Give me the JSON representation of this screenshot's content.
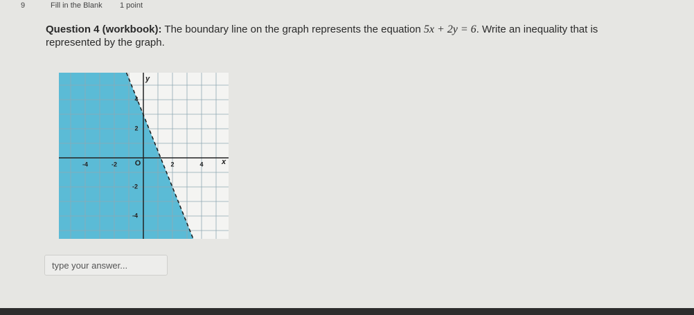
{
  "header": {
    "number": "9",
    "type": "Fill in the Blank",
    "points": "1 point"
  },
  "question": {
    "label": "Question 4 (workbook):",
    "text_before": "The boundary line on the graph represents the equation",
    "equation": "5x + 2y = 6",
    "text_after": ". Write an inequality that is represented by the graph."
  },
  "graph": {
    "x_axis_label": "x",
    "y_axis_label": "y",
    "origin_label": "O",
    "x_tick_labels": [
      "-4",
      "-2",
      "2",
      "4"
    ],
    "y_tick_labels": [
      "4",
      "2",
      "-2",
      "-4"
    ]
  },
  "answer": {
    "placeholder": "type your answer..."
  }
}
